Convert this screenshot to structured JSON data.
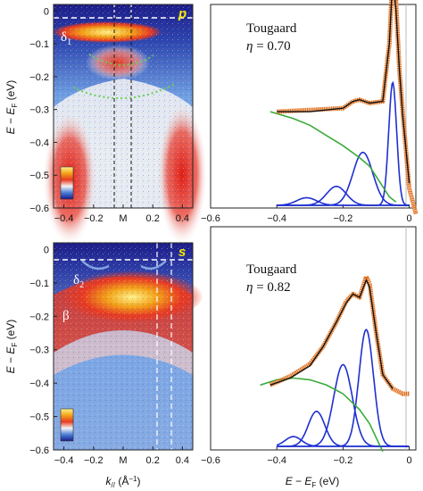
{
  "chart_data": [
    {
      "type": "heatmap",
      "panel": "top-left",
      "corner_label": "p",
      "feature_labels": [
        "δ1"
      ],
      "x_ticks": [
        "−0.4",
        "−0.2",
        "M",
        "0.2",
        "0.4"
      ],
      "y_ticks": [
        "0",
        "−0.1",
        "−0.2",
        "−0.3",
        "−0.4",
        "−0.5",
        "−0.6"
      ],
      "ylabel": [
        "E",
        " − ",
        "E",
        "F",
        " (eV)"
      ],
      "xlim": [
        -0.47,
        0.47
      ],
      "ylim": [
        -0.6,
        0.02
      ],
      "colormap": [
        "#1c1c88",
        "#4a80d8",
        "#f4f4f4",
        "#e73a22",
        "#f3a318",
        "#fff38a"
      ]
    },
    {
      "type": "line",
      "panel": "top-right",
      "annotation": [
        "Tougaard",
        "η",
        " = 0.70"
      ],
      "x_ticks": [
        "−0.6",
        "−0.4",
        "−0.2",
        "0"
      ],
      "xlim": [
        -0.6,
        0.02
      ],
      "series": [
        {
          "role": "data",
          "color": "#e0701e",
          "x": [
            -0.4,
            -0.3,
            -0.2,
            -0.17,
            -0.15,
            -0.12,
            -0.08,
            -0.06,
            -0.05,
            -0.04,
            -0.03,
            -0.02,
            0.0,
            0.02
          ],
          "y": [
            0.0,
            0.01,
            0.02,
            0.06,
            0.07,
            0.05,
            0.06,
            0.4,
            0.8,
            0.65,
            0.25,
            0.0,
            -0.45,
            -0.6
          ]
        },
        {
          "role": "fit",
          "color": "#111111",
          "x": [
            -0.4,
            -0.3,
            -0.2,
            -0.17,
            -0.15,
            -0.12,
            -0.08,
            -0.06,
            -0.05,
            -0.04,
            -0.03,
            -0.02,
            0.0
          ],
          "y": [
            0.0,
            0.0,
            0.02,
            0.06,
            0.07,
            0.05,
            0.06,
            0.4,
            0.78,
            0.6,
            0.25,
            -0.02,
            -0.42
          ]
        },
        {
          "role": "background",
          "color": "#3aab3a",
          "x": [
            -0.42,
            -0.35,
            -0.3,
            -0.25,
            -0.2,
            -0.15,
            -0.12,
            -0.1,
            -0.08,
            -0.06,
            -0.04
          ],
          "y": [
            0.0,
            -0.04,
            -0.08,
            -0.14,
            -0.2,
            -0.27,
            -0.32,
            -0.38,
            -0.44,
            -0.5,
            -0.53
          ]
        },
        {
          "role": "component",
          "color": "#1f2fd0",
          "center": -0.31,
          "width": 0.03,
          "height": 0.04
        },
        {
          "role": "component",
          "color": "#1f2fd0",
          "center": -0.22,
          "width": 0.03,
          "height": 0.1
        },
        {
          "role": "component",
          "color": "#1f2fd0",
          "center": -0.14,
          "width": 0.03,
          "height": 0.28
        },
        {
          "role": "component",
          "color": "#1f2fd0",
          "center": -0.05,
          "width": 0.012,
          "height": 0.65
        }
      ]
    },
    {
      "type": "heatmap",
      "panel": "bottom-left",
      "corner_label": "s",
      "feature_labels": [
        "δ2",
        "β"
      ],
      "x_ticks": [
        "−0.4",
        "−0.2",
        "M",
        "0.2",
        "0.4"
      ],
      "y_ticks": [
        "0",
        "−0.1",
        "−0.2",
        "−0.3",
        "−0.4",
        "−0.5",
        "−0.6"
      ],
      "xlabel": [
        "k",
        "//",
        " (Å",
        "−1",
        ")"
      ],
      "ylabel": [
        "E",
        " − ",
        "E",
        "F",
        " (eV)"
      ],
      "xlim": [
        -0.47,
        0.47
      ],
      "ylim": [
        -0.6,
        0.02
      ],
      "colormap": [
        "#1c1c88",
        "#4a80d8",
        "#f4f4f4",
        "#e73a22",
        "#f3a318",
        "#fff38a"
      ]
    },
    {
      "type": "line",
      "panel": "bottom-right",
      "annotation": [
        "Tougaard",
        "η",
        " = 0.82"
      ],
      "x_ticks": [
        "−0.6",
        "−0.4",
        "−0.2",
        "0"
      ],
      "xlabel": [
        "E",
        " − ",
        "E",
        "F",
        " (eV)"
      ],
      "xlim": [
        -0.6,
        0.02
      ],
      "series": [
        {
          "role": "data",
          "color": "#e0701e",
          "x": [
            -0.42,
            -0.36,
            -0.3,
            -0.26,
            -0.22,
            -0.19,
            -0.17,
            -0.15,
            -0.13,
            -0.12,
            -0.1,
            -0.08,
            -0.05,
            -0.02,
            0.0
          ],
          "y": [
            0.0,
            0.05,
            0.12,
            0.22,
            0.36,
            0.48,
            0.52,
            0.5,
            0.62,
            0.58,
            0.3,
            0.06,
            -0.02,
            -0.05,
            -0.05
          ]
        },
        {
          "role": "fit",
          "color": "#111111",
          "x": [
            -0.42,
            -0.36,
            -0.3,
            -0.26,
            -0.22,
            -0.19,
            -0.17,
            -0.15,
            -0.13,
            -0.12,
            -0.1,
            -0.08,
            -0.05
          ],
          "y": [
            0.0,
            0.04,
            0.11,
            0.22,
            0.36,
            0.47,
            0.52,
            0.5,
            0.6,
            0.56,
            0.3,
            0.06,
            -0.02
          ]
        },
        {
          "role": "background",
          "color": "#3aab3a",
          "x": [
            -0.45,
            -0.4,
            -0.35,
            -0.3,
            -0.25,
            -0.2,
            -0.15,
            -0.12,
            -0.1,
            -0.08
          ],
          "y": [
            0.0,
            0.03,
            0.04,
            0.03,
            0.0,
            -0.05,
            -0.14,
            -0.22,
            -0.3,
            -0.38
          ]
        },
        {
          "role": "component",
          "color": "#1f2fd0",
          "center": -0.35,
          "width": 0.025,
          "height": 0.05
        },
        {
          "role": "component",
          "color": "#1f2fd0",
          "center": -0.28,
          "width": 0.025,
          "height": 0.18
        },
        {
          "role": "component",
          "color": "#1f2fd0",
          "center": -0.2,
          "width": 0.028,
          "height": 0.42
        },
        {
          "role": "component",
          "color": "#1f2fd0",
          "center": -0.13,
          "width": 0.022,
          "height": 0.6
        }
      ]
    }
  ]
}
